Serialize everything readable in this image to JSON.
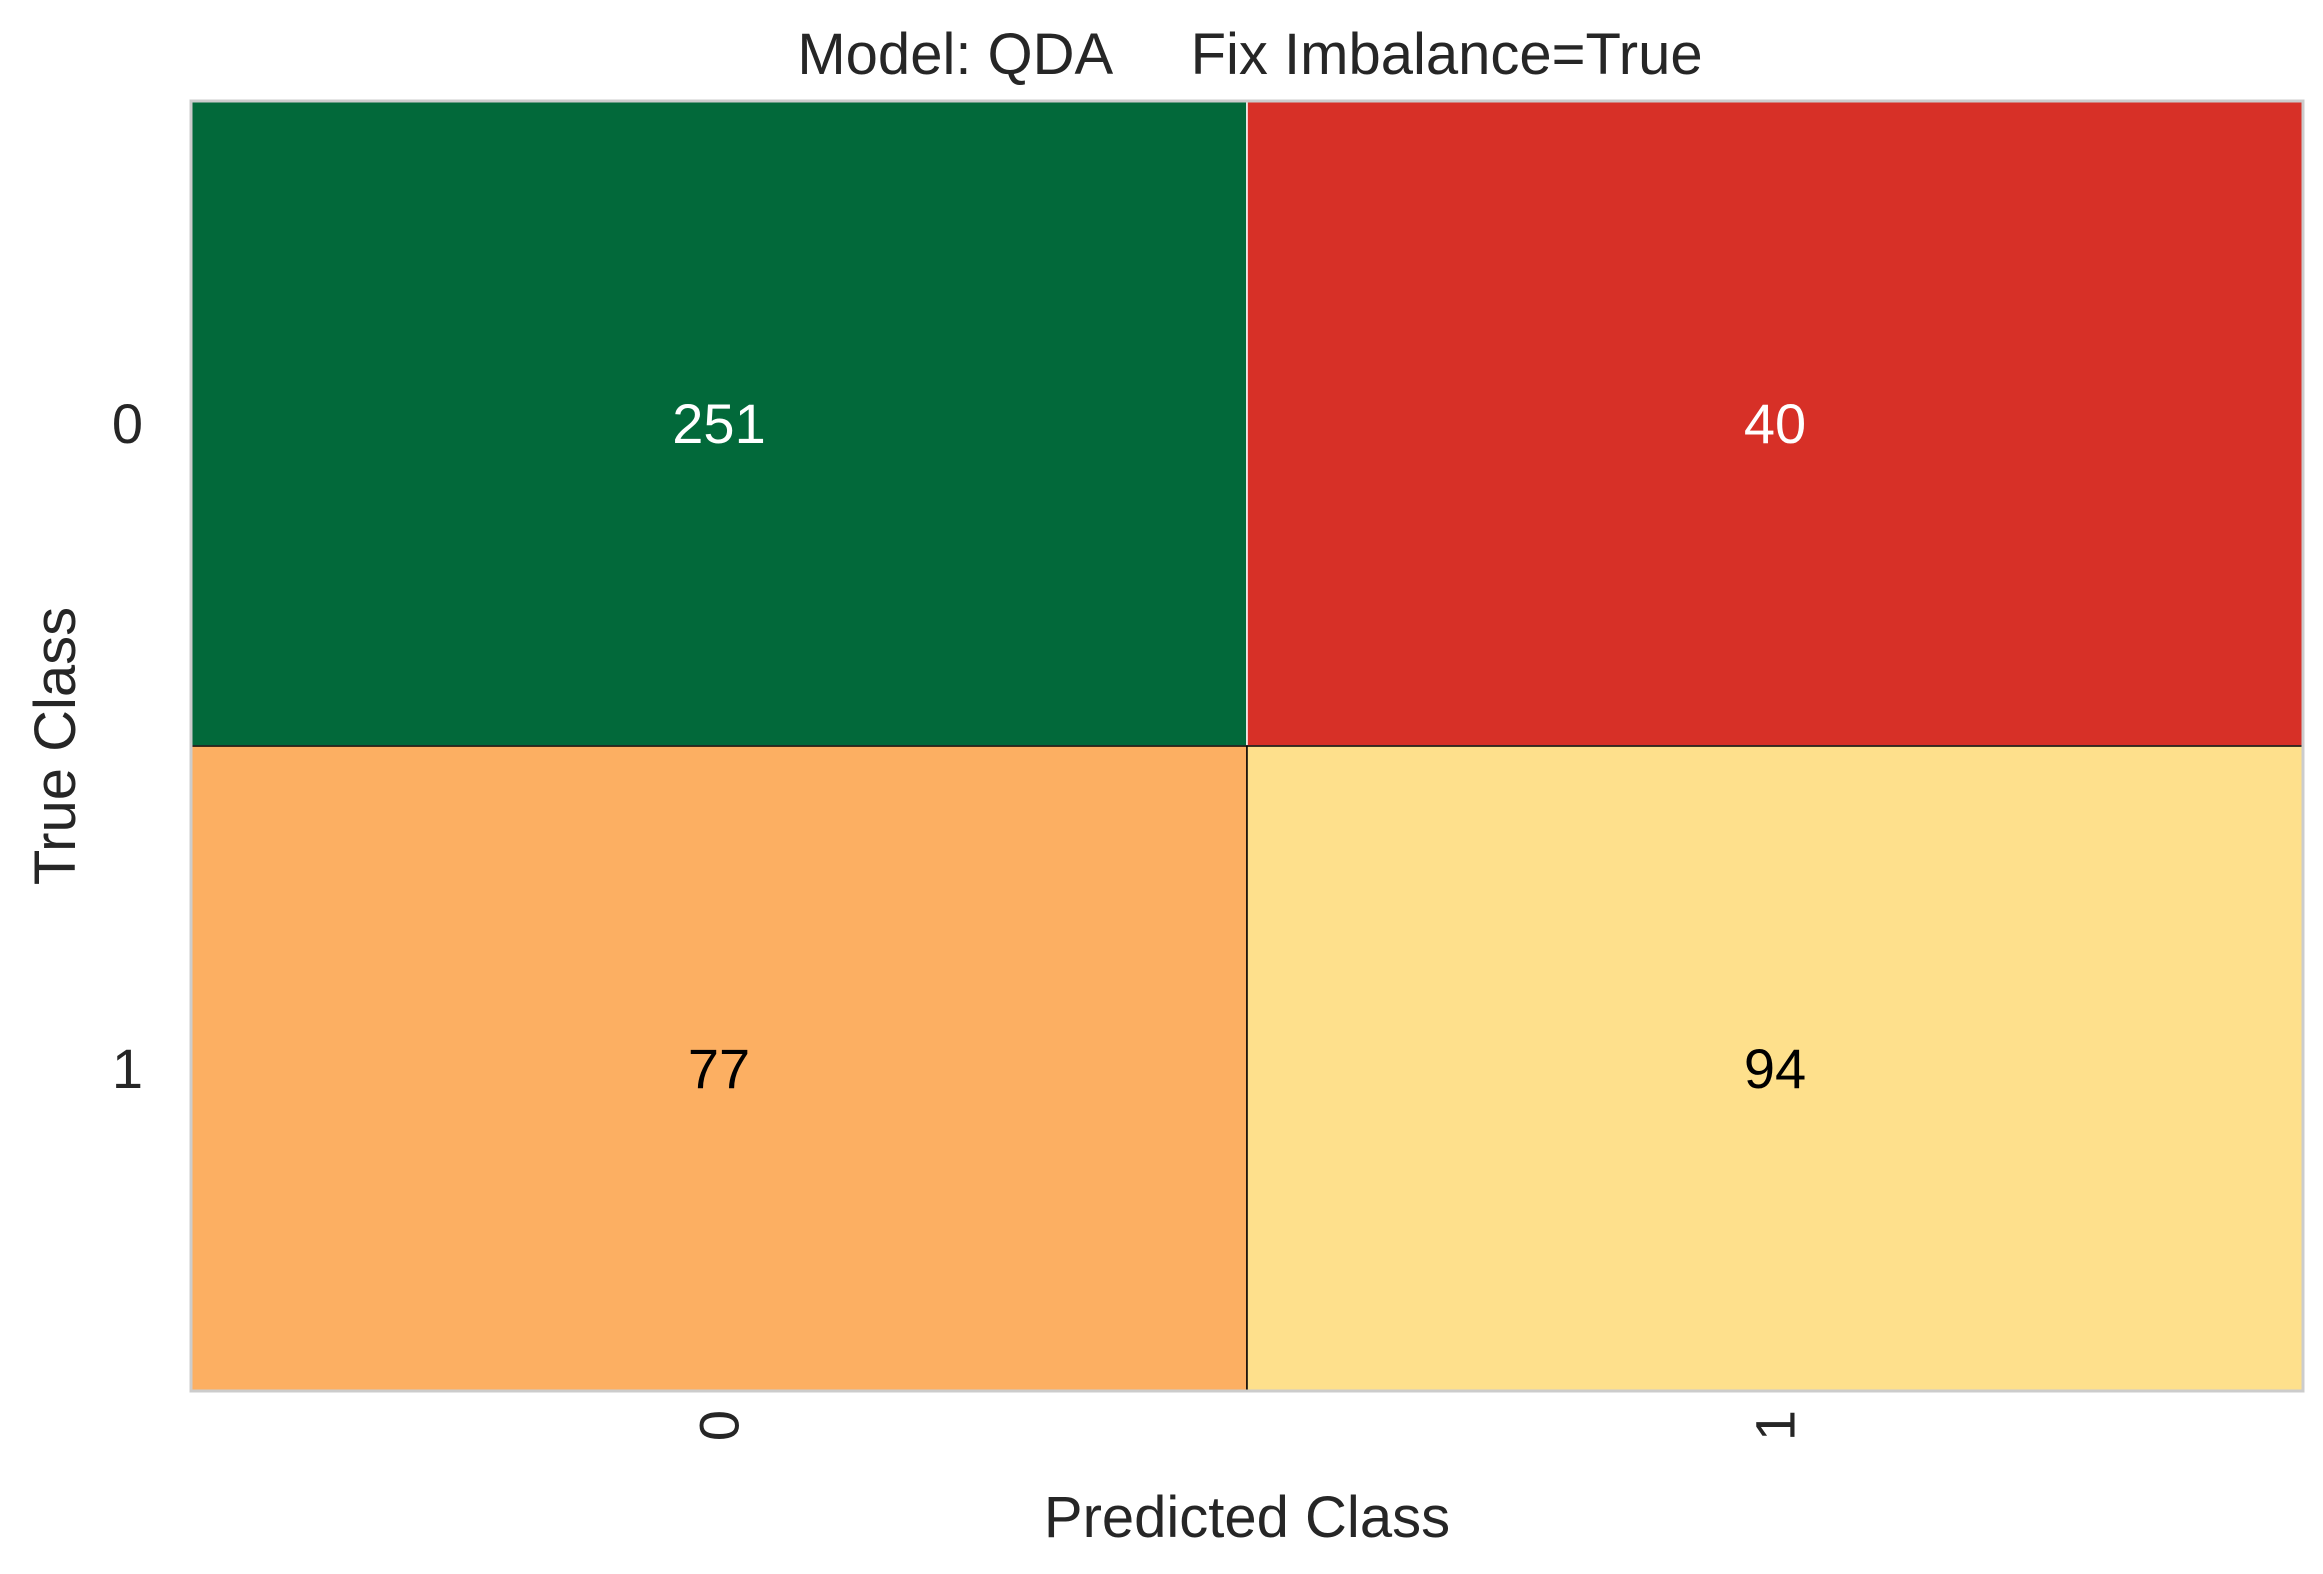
{
  "chart_data": {
    "type": "heatmap",
    "title": "Model: QDA     Fix Imbalance=True",
    "xlabel": "Predicted Class",
    "ylabel": "True Class",
    "x_categories": [
      "0",
      "1"
    ],
    "y_categories": [
      "0",
      "1"
    ],
    "values": [
      [
        251,
        40
      ],
      [
        77,
        94
      ]
    ],
    "cell_colors": [
      [
        "#02693a",
        "#d73027"
      ],
      [
        "#fcaf62",
        "#fee08c"
      ]
    ],
    "text_colors": [
      [
        "#ffffff",
        "#ffffff"
      ],
      [
        "#000000",
        "#000000"
      ]
    ],
    "grid": false,
    "colorbar": false
  }
}
